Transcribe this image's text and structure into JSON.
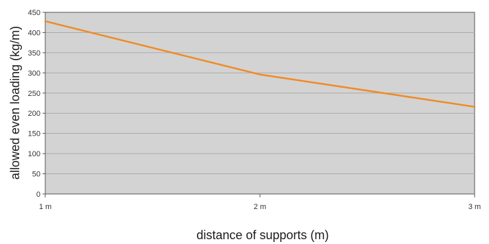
{
  "chart_data": {
    "type": "line",
    "title": "",
    "xlabel": "distance of supports (m)",
    "ylabel": "allowed even loading (kg/m)",
    "categories": [
      "1 m",
      "2 m",
      "3 m"
    ],
    "series": [
      {
        "values": [
          428,
          296,
          216
        ]
      }
    ],
    "ylim": [
      0,
      450
    ],
    "yticks": [
      0,
      50,
      100,
      150,
      200,
      250,
      300,
      350,
      400,
      450
    ],
    "grid": "horizontal",
    "legend": "none",
    "colors": {
      "plot_background": "#d3d3d3",
      "line": "#f08a24",
      "gridline": "#aaaaaa",
      "axis": "#555555"
    }
  }
}
